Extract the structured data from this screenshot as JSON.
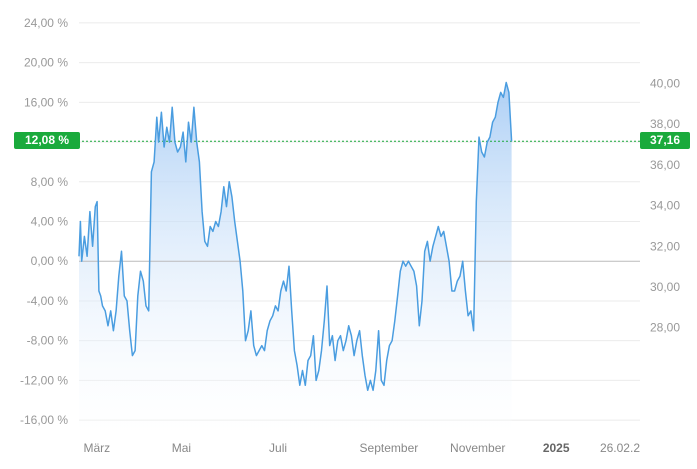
{
  "chart_data": {
    "type": "area",
    "left_axis": {
      "unit": "%",
      "range": [
        -17.5,
        25.5
      ],
      "ticks": [
        "24,00 %",
        "20,00 %",
        "16,00 %",
        "12,00 %",
        "8,00 %",
        "4,00 %",
        "0,00 %",
        "-4,00 %",
        "-8,00 %",
        "-12,00 %",
        "-16,00 %"
      ],
      "tick_values": [
        24,
        20,
        16,
        12,
        8,
        4,
        0,
        -4,
        -8,
        -12,
        -16
      ]
    },
    "right_axis": {
      "ticks": [
        "40,00",
        "38,00",
        "36,00",
        "34,00",
        "32,00",
        "30,00",
        "28,00"
      ],
      "tick_values": [
        40,
        38,
        36,
        34,
        32,
        30,
        28
      ]
    },
    "x_labels": [
      {
        "label": "März",
        "month_index": 0.1
      },
      {
        "label": "Mai",
        "month_index": 2.05
      },
      {
        "label": "Juli",
        "month_index": 4.2
      },
      {
        "label": "September",
        "month_index": 6.2
      },
      {
        "label": "November",
        "month_index": 8.2
      },
      {
        "label": "2025",
        "month_index": 10.25,
        "bold": true
      },
      {
        "label": "26.02.2",
        "month_index": 12.0
      }
    ],
    "baseline": 0,
    "current": {
      "percent": 12.08,
      "percent_label": "12,08 %",
      "price_label": "37,16"
    },
    "colors": {
      "line": "#4a9de0",
      "fill_top": "#a9cdf5",
      "fill_bottom": "#ffffff",
      "badge": "#1aaa3c",
      "grid": "#ebebeb",
      "baseline": "#bbbbbb"
    },
    "series": [
      {
        "x": 0.0,
        "y": 0.5
      },
      {
        "x": 0.03,
        "y": 4.0
      },
      {
        "x": 0.06,
        "y": 0.0
      },
      {
        "x": 0.12,
        "y": 2.5
      },
      {
        "x": 0.18,
        "y": 0.5
      },
      {
        "x": 0.24,
        "y": 5.0
      },
      {
        "x": 0.3,
        "y": 1.5
      },
      {
        "x": 0.36,
        "y": 5.5
      },
      {
        "x": 0.4,
        "y": 6.0
      },
      {
        "x": 0.44,
        "y": -3.0
      },
      {
        "x": 0.48,
        "y": -3.5
      },
      {
        "x": 0.52,
        "y": -4.5
      },
      {
        "x": 0.58,
        "y": -5.0
      },
      {
        "x": 0.64,
        "y": -6.5
      },
      {
        "x": 0.7,
        "y": -5.0
      },
      {
        "x": 0.76,
        "y": -7.0
      },
      {
        "x": 0.82,
        "y": -5.0
      },
      {
        "x": 0.88,
        "y": -1.5
      },
      {
        "x": 0.94,
        "y": 1.0
      },
      {
        "x": 1.0,
        "y": -3.5
      },
      {
        "x": 1.06,
        "y": -4.0
      },
      {
        "x": 1.12,
        "y": -7.0
      },
      {
        "x": 1.18,
        "y": -9.5
      },
      {
        "x": 1.24,
        "y": -9.0
      },
      {
        "x": 1.3,
        "y": -3.5
      },
      {
        "x": 1.36,
        "y": -1.0
      },
      {
        "x": 1.42,
        "y": -2.0
      },
      {
        "x": 1.48,
        "y": -4.5
      },
      {
        "x": 1.54,
        "y": -5.0
      },
      {
        "x": 1.6,
        "y": 9.0
      },
      {
        "x": 1.66,
        "y": 10.0
      },
      {
        "x": 1.72,
        "y": 14.5
      },
      {
        "x": 1.76,
        "y": 12.0
      },
      {
        "x": 1.82,
        "y": 15.0
      },
      {
        "x": 1.88,
        "y": 11.5
      },
      {
        "x": 1.94,
        "y": 13.5
      },
      {
        "x": 2.0,
        "y": 12.0
      },
      {
        "x": 2.06,
        "y": 15.5
      },
      {
        "x": 2.12,
        "y": 12.0
      },
      {
        "x": 2.18,
        "y": 11.0
      },
      {
        "x": 2.24,
        "y": 11.5
      },
      {
        "x": 2.3,
        "y": 13.0
      },
      {
        "x": 2.36,
        "y": 10.0
      },
      {
        "x": 2.42,
        "y": 14.0
      },
      {
        "x": 2.48,
        "y": 12.0
      },
      {
        "x": 2.54,
        "y": 15.5
      },
      {
        "x": 2.6,
        "y": 12.0
      },
      {
        "x": 2.66,
        "y": 10.0
      },
      {
        "x": 2.72,
        "y": 5.0
      },
      {
        "x": 2.78,
        "y": 2.0
      },
      {
        "x": 2.84,
        "y": 1.5
      },
      {
        "x": 2.9,
        "y": 3.5
      },
      {
        "x": 2.96,
        "y": 3.0
      },
      {
        "x": 3.02,
        "y": 4.0
      },
      {
        "x": 3.08,
        "y": 3.5
      },
      {
        "x": 3.14,
        "y": 5.0
      },
      {
        "x": 3.2,
        "y": 7.5
      },
      {
        "x": 3.26,
        "y": 5.5
      },
      {
        "x": 3.32,
        "y": 8.0
      },
      {
        "x": 3.38,
        "y": 6.5
      },
      {
        "x": 3.44,
        "y": 4.0
      },
      {
        "x": 3.5,
        "y": 2.0
      },
      {
        "x": 3.56,
        "y": 0.0
      },
      {
        "x": 3.62,
        "y": -3.0
      },
      {
        "x": 3.68,
        "y": -8.0
      },
      {
        "x": 3.74,
        "y": -7.0
      },
      {
        "x": 3.8,
        "y": -5.0
      },
      {
        "x": 3.86,
        "y": -8.5
      },
      {
        "x": 3.92,
        "y": -9.5
      },
      {
        "x": 3.98,
        "y": -9.0
      },
      {
        "x": 4.04,
        "y": -8.5
      },
      {
        "x": 4.1,
        "y": -9.0
      },
      {
        "x": 4.16,
        "y": -7.0
      },
      {
        "x": 4.22,
        "y": -6.0
      },
      {
        "x": 4.28,
        "y": -5.5
      },
      {
        "x": 4.34,
        "y": -4.5
      },
      {
        "x": 4.4,
        "y": -5.0
      },
      {
        "x": 4.46,
        "y": -3.0
      },
      {
        "x": 4.52,
        "y": -2.0
      },
      {
        "x": 4.58,
        "y": -3.0
      },
      {
        "x": 4.64,
        "y": -0.5
      },
      {
        "x": 4.7,
        "y": -5.0
      },
      {
        "x": 4.76,
        "y": -9.0
      },
      {
        "x": 4.82,
        "y": -10.5
      },
      {
        "x": 4.88,
        "y": -12.5
      },
      {
        "x": 4.94,
        "y": -11.0
      },
      {
        "x": 5.0,
        "y": -12.5
      },
      {
        "x": 5.06,
        "y": -10.0
      },
      {
        "x": 5.12,
        "y": -9.5
      },
      {
        "x": 5.18,
        "y": -7.5
      },
      {
        "x": 5.24,
        "y": -12.0
      },
      {
        "x": 5.3,
        "y": -11.0
      },
      {
        "x": 5.36,
        "y": -9.0
      },
      {
        "x": 5.42,
        "y": -6.0
      },
      {
        "x": 5.48,
        "y": -2.5
      },
      {
        "x": 5.54,
        "y": -8.5
      },
      {
        "x": 5.6,
        "y": -7.5
      },
      {
        "x": 5.66,
        "y": -10.0
      },
      {
        "x": 5.72,
        "y": -8.0
      },
      {
        "x": 5.78,
        "y": -7.5
      },
      {
        "x": 5.84,
        "y": -9.0
      },
      {
        "x": 5.9,
        "y": -8.0
      },
      {
        "x": 5.96,
        "y": -6.5
      },
      {
        "x": 6.02,
        "y": -7.5
      },
      {
        "x": 6.08,
        "y": -9.5
      },
      {
        "x": 6.14,
        "y": -8.0
      },
      {
        "x": 6.2,
        "y": -7.0
      },
      {
        "x": 6.26,
        "y": -9.5
      },
      {
        "x": 6.32,
        "y": -11.5
      },
      {
        "x": 6.38,
        "y": -13.0
      },
      {
        "x": 6.44,
        "y": -12.0
      },
      {
        "x": 6.5,
        "y": -13.0
      },
      {
        "x": 6.56,
        "y": -11.0
      },
      {
        "x": 6.62,
        "y": -7.0
      },
      {
        "x": 6.68,
        "y": -12.0
      },
      {
        "x": 6.74,
        "y": -12.5
      },
      {
        "x": 6.8,
        "y": -10.0
      },
      {
        "x": 6.86,
        "y": -8.5
      },
      {
        "x": 6.92,
        "y": -8.0
      },
      {
        "x": 6.98,
        "y": -6.0
      },
      {
        "x": 7.04,
        "y": -3.5
      },
      {
        "x": 7.1,
        "y": -1.0
      },
      {
        "x": 7.16,
        "y": 0.0
      },
      {
        "x": 7.22,
        "y": -0.5
      },
      {
        "x": 7.28,
        "y": 0.0
      },
      {
        "x": 7.34,
        "y": -0.5
      },
      {
        "x": 7.4,
        "y": -1.0
      },
      {
        "x": 7.46,
        "y": -2.5
      },
      {
        "x": 7.52,
        "y": -6.5
      },
      {
        "x": 7.58,
        "y": -4.0
      },
      {
        "x": 7.64,
        "y": 1.0
      },
      {
        "x": 7.7,
        "y": 2.0
      },
      {
        "x": 7.76,
        "y": 0.0
      },
      {
        "x": 7.82,
        "y": 1.5
      },
      {
        "x": 7.88,
        "y": 2.5
      },
      {
        "x": 7.94,
        "y": 3.5
      },
      {
        "x": 8.0,
        "y": 2.5
      },
      {
        "x": 8.06,
        "y": 3.0
      },
      {
        "x": 8.12,
        "y": 1.5
      },
      {
        "x": 8.18,
        "y": 0.0
      },
      {
        "x": 8.24,
        "y": -3.0
      },
      {
        "x": 8.3,
        "y": -3.0
      },
      {
        "x": 8.36,
        "y": -2.0
      },
      {
        "x": 8.42,
        "y": -1.5
      },
      {
        "x": 8.48,
        "y": 0.0
      },
      {
        "x": 8.54,
        "y": -3.0
      },
      {
        "x": 8.6,
        "y": -5.5
      },
      {
        "x": 8.66,
        "y": -5.0
      },
      {
        "x": 8.72,
        "y": -7.0
      },
      {
        "x": 8.78,
        "y": 6.0
      },
      {
        "x": 8.84,
        "y": 12.5
      },
      {
        "x": 8.9,
        "y": 11.0
      },
      {
        "x": 8.96,
        "y": 10.5
      },
      {
        "x": 9.02,
        "y": 12.0
      },
      {
        "x": 9.08,
        "y": 12.5
      },
      {
        "x": 9.14,
        "y": 14.0
      },
      {
        "x": 9.2,
        "y": 14.5
      },
      {
        "x": 9.26,
        "y": 16.0
      },
      {
        "x": 9.32,
        "y": 17.0
      },
      {
        "x": 9.38,
        "y": 16.5
      },
      {
        "x": 9.44,
        "y": 18.0
      },
      {
        "x": 9.5,
        "y": 17.0
      },
      {
        "x": 9.56,
        "y": 12.08
      }
    ]
  }
}
